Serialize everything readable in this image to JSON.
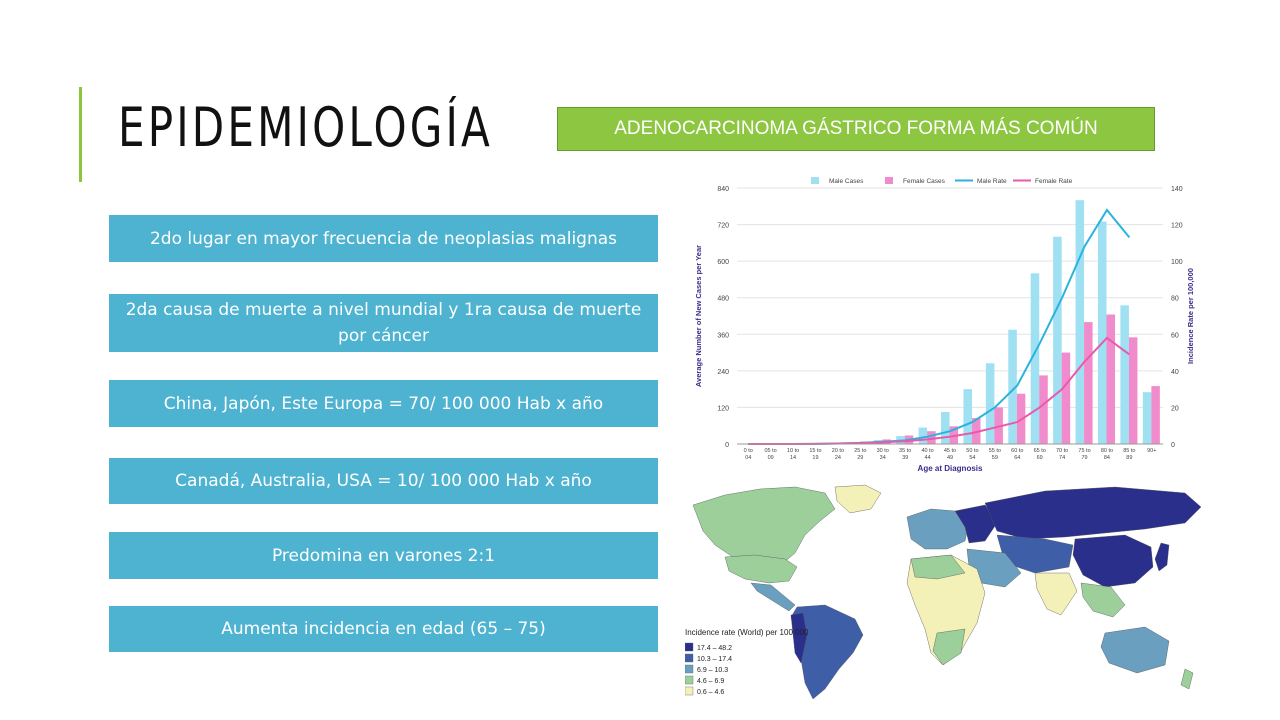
{
  "slide": {
    "title": "EPIDEMIOLOGÍA",
    "highlight": "ADENOCARCINOMA GÁSTRICO FORMA MÁS COMÚN",
    "accent_color": "#8cc63f",
    "box_color": "#4db3d0"
  },
  "bullets": [
    "2do lugar en mayor frecuencia de neoplasias malignas",
    "2da causa de muerte a nivel mundial y 1ra causa de muerte por cáncer",
    "China, Japón, Este Europa = 70/ 100 000 Hab x año",
    "Canadá, Australia, USA = 10/ 100 000 Hab x año",
    "Predomina en varones 2:1",
    "Aumenta incidencia en edad (65 – 75)"
  ],
  "chart_data": {
    "type": "bar",
    "xlabel": "Age at Diagnosis",
    "ylabel": "Average Number of New Cases per Year",
    "y2label": "Incidence Rate per 100,000",
    "ylim": [
      0,
      840
    ],
    "y2lim": [
      0,
      140
    ],
    "yticks": [
      "0",
      "120",
      "240",
      "360",
      "480",
      "600",
      "720",
      "840"
    ],
    "y2ticks": [
      "0",
      "20",
      "40",
      "60",
      "80",
      "100",
      "120",
      "140"
    ],
    "legend_position": "top",
    "categories": [
      "0 to 04",
      "05 to 09",
      "10 to 14",
      "15 to 19",
      "20 to 24",
      "25 to 29",
      "30 to 34",
      "35 to 39",
      "40 to 44",
      "45 to 49",
      "50 to 54",
      "55 to 59",
      "60 to 64",
      "65 to 69",
      "70 to 74",
      "75 to 79",
      "80 to 84",
      "85 to 89",
      "90+"
    ],
    "series": [
      {
        "name": "Male Cases",
        "kind": "bar",
        "axis": "left",
        "color": "#9fe0f2",
        "values": [
          0,
          0,
          0,
          1,
          3,
          6,
          13,
          26,
          54,
          105,
          180,
          265,
          375,
          560,
          680,
          800,
          730,
          455,
          170
        ]
      },
      {
        "name": "Female Cases",
        "kind": "bar",
        "axis": "left",
        "color": "#f08ccc",
        "values": [
          0,
          0,
          0,
          1,
          4,
          8,
          15,
          28,
          42,
          58,
          85,
          120,
          165,
          225,
          300,
          400,
          425,
          350,
          190
        ]
      },
      {
        "name": "Male Rate",
        "kind": "line",
        "axis": "right",
        "color": "#2ab3dd",
        "values": [
          0,
          0,
          0,
          0.1,
          0.3,
          0.6,
          1.2,
          2,
          4,
          7,
          12,
          20,
          32,
          55,
          80,
          108,
          128,
          113,
          0
        ]
      },
      {
        "name": "Female Rate",
        "kind": "line",
        "axis": "right",
        "color": "#e85aaa",
        "values": [
          0,
          0,
          0,
          0.1,
          0.3,
          0.5,
          0.9,
          1.5,
          2.5,
          4,
          6,
          9,
          12,
          20,
          30,
          45,
          58,
          49,
          0
        ]
      }
    ]
  },
  "map": {
    "legend_title": "Incidence rate (World) per 100 000",
    "legend": [
      {
        "label": "17.4 – 48.2",
        "color": "#2a2f8c"
      },
      {
        "label": "10.3 – 17.4",
        "color": "#3e5ea8"
      },
      {
        "label": "6.9 – 10.3",
        "color": "#6a9fbf"
      },
      {
        "label": "4.6 – 6.9",
        "color": "#9ccf9a"
      },
      {
        "label": "0.6 – 4.6",
        "color": "#f3f1b8"
      }
    ]
  }
}
